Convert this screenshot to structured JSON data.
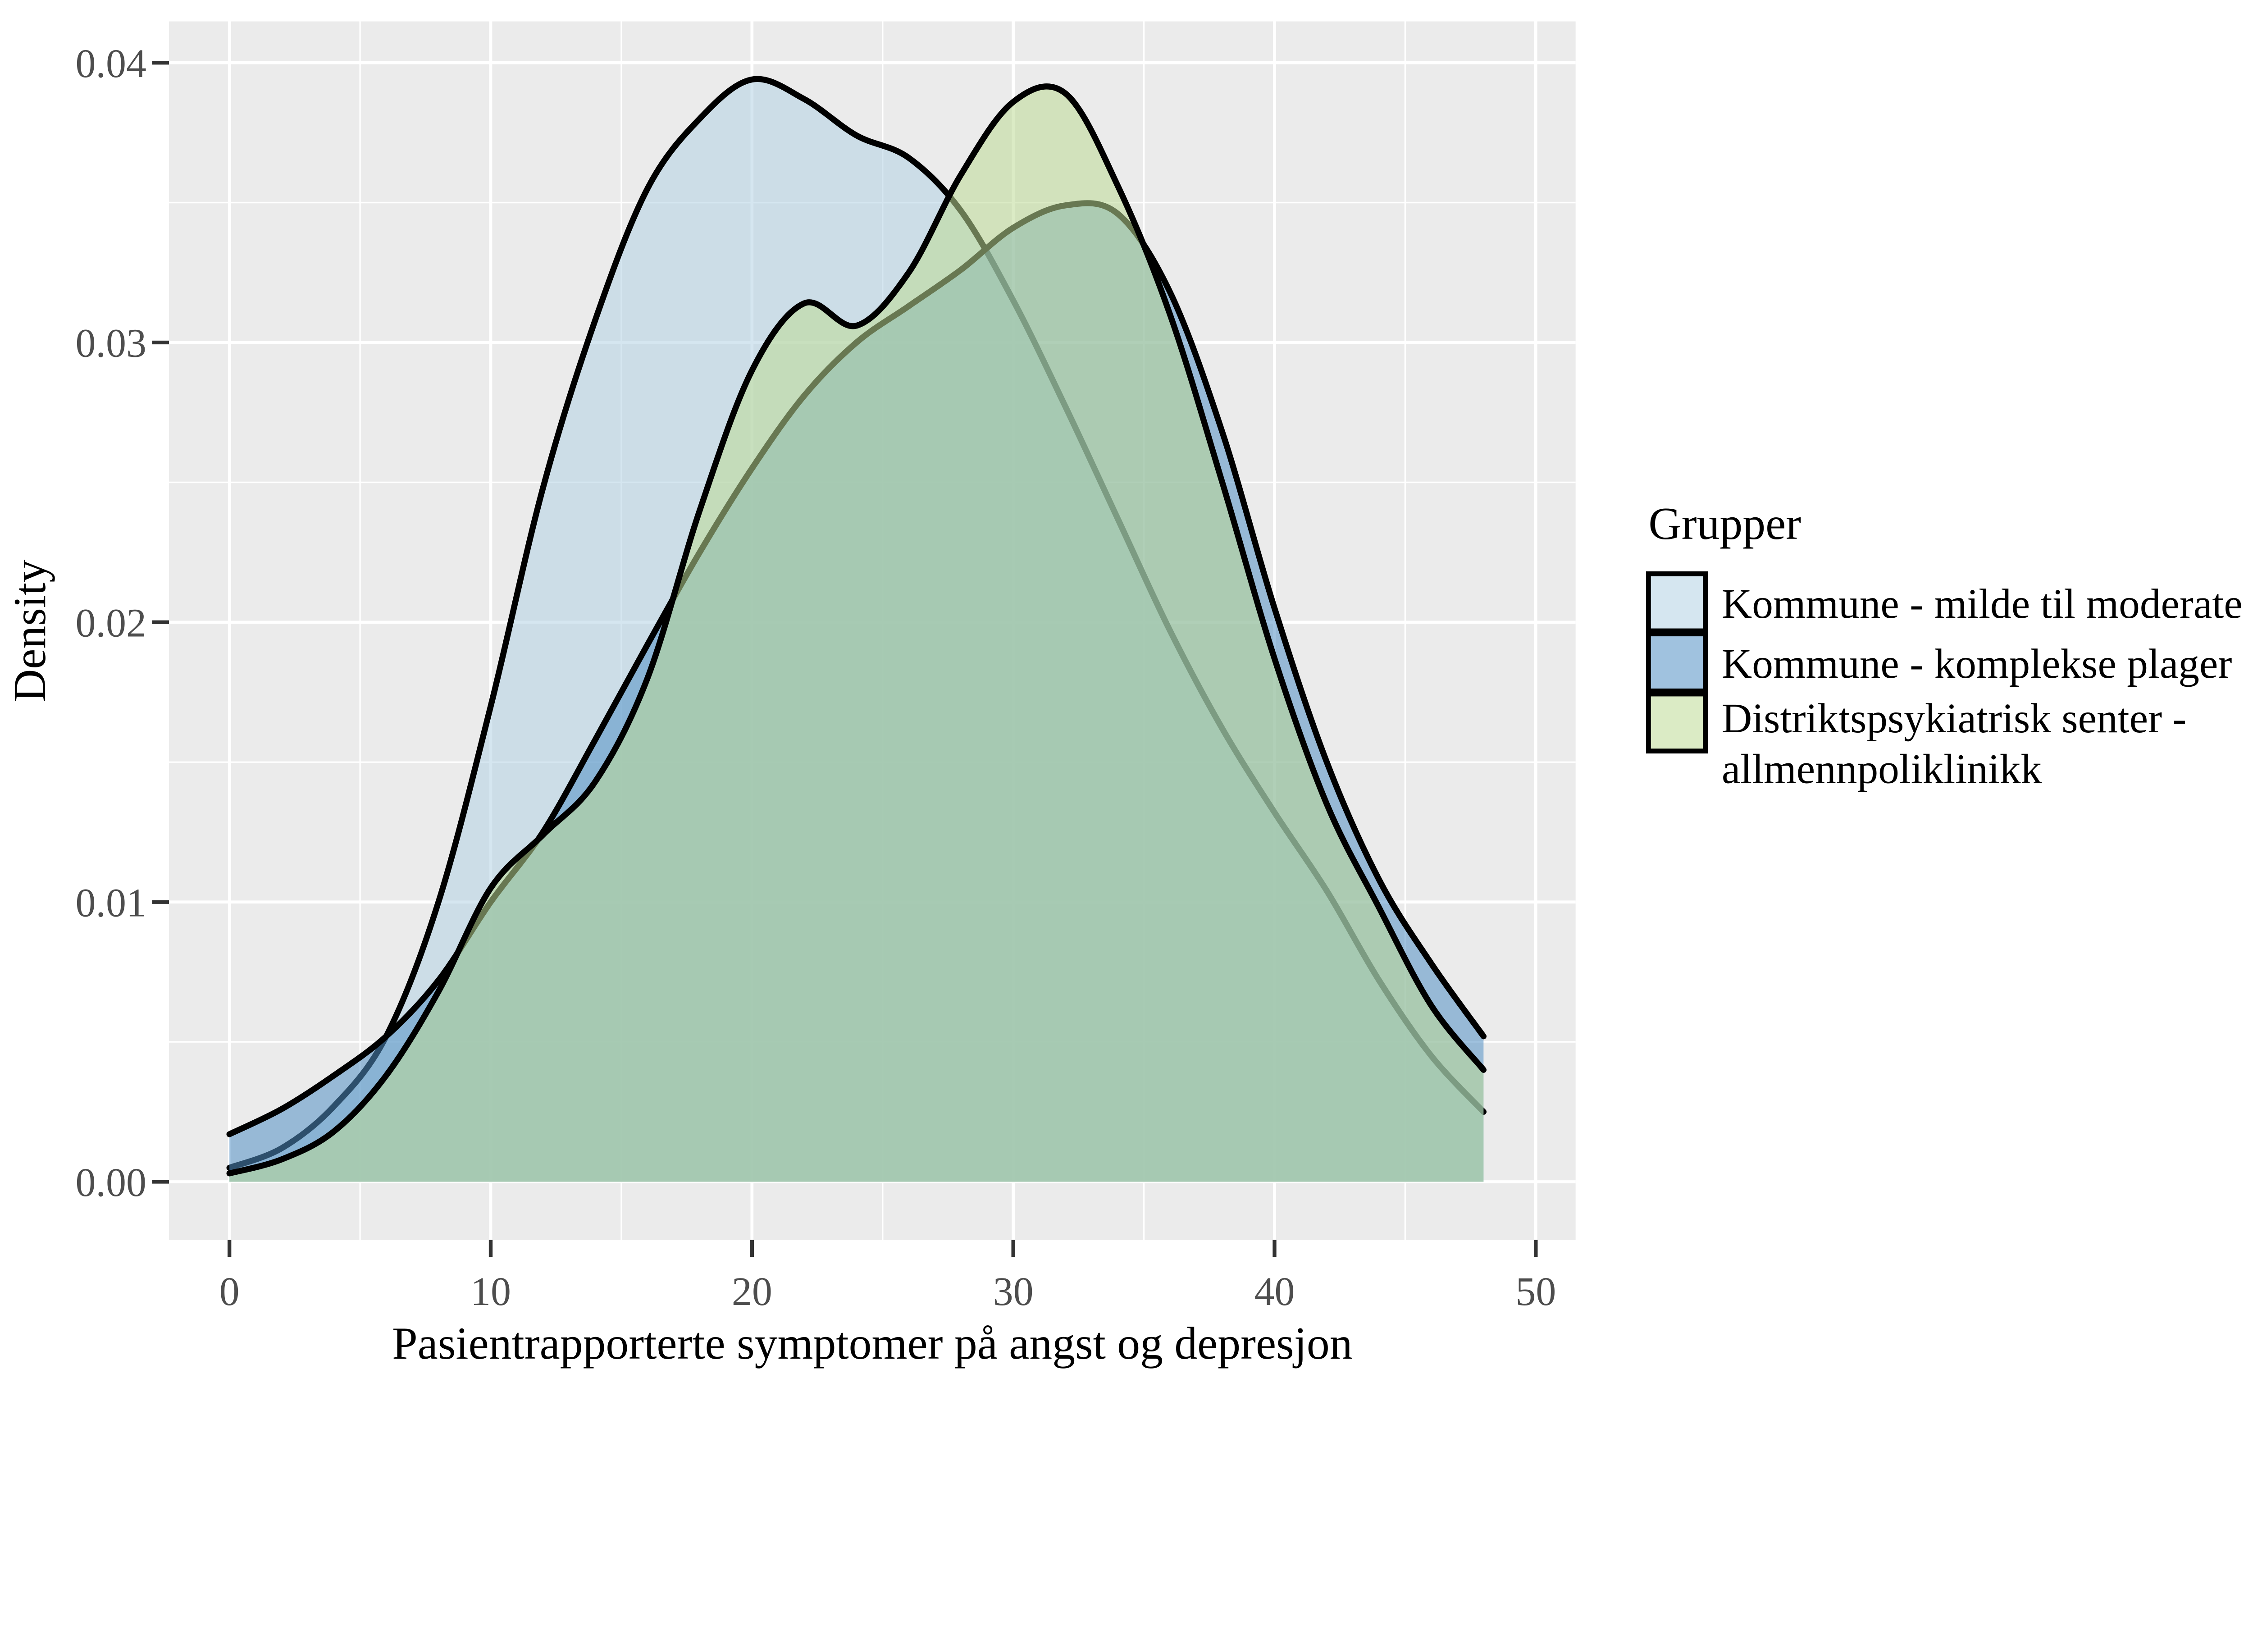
{
  "chart_data": {
    "type": "area",
    "subtype": "overlapping-density-curves",
    "xlabel": "Pasientrapporterte symptomer på angst og depresjon",
    "ylabel": "Density",
    "x_ticks": [
      0,
      10,
      20,
      30,
      40,
      50
    ],
    "x_minor_ticks": [
      5,
      15,
      25,
      35,
      45
    ],
    "y_ticks": [
      0.0,
      0.01,
      0.02,
      0.03,
      0.04
    ],
    "y_tick_labels": [
      "0.00",
      "0.01",
      "0.02",
      "0.03",
      "0.04"
    ],
    "y_minor_ticks": [
      0.005,
      0.015,
      0.025,
      0.035
    ],
    "xlim": [
      -2.3,
      51.5
    ],
    "ylim": [
      -0.002,
      0.0414
    ],
    "grid": "on",
    "legend_position": "right",
    "x": [
      0,
      2,
      4,
      6,
      8,
      10,
      12,
      14,
      16,
      18,
      20,
      22,
      24,
      26,
      28,
      30,
      32,
      34,
      36,
      38,
      40,
      42,
      44,
      46,
      48
    ],
    "series": [
      {
        "name": "Kommune - milde til moderate",
        "fill": "#b3d2e4",
        "values": [
          0.0005,
          0.0012,
          0.0027,
          0.0052,
          0.01,
          0.017,
          0.0248,
          0.0308,
          0.0355,
          0.038,
          0.0394,
          0.0387,
          0.0374,
          0.0366,
          0.0347,
          0.0315,
          0.0277,
          0.0237,
          0.0197,
          0.0162,
          0.0132,
          0.0104,
          0.0072,
          0.0045,
          0.0025
        ]
      },
      {
        "name": "Kommune - komplekse plager",
        "fill": "#5290c5",
        "values": [
          0.0017,
          0.0026,
          0.0038,
          0.0052,
          0.0072,
          0.01,
          0.0125,
          0.0158,
          0.0192,
          0.0225,
          0.0255,
          0.0281,
          0.03,
          0.0313,
          0.0326,
          0.0341,
          0.0349,
          0.0346,
          0.0318,
          0.0268,
          0.0205,
          0.015,
          0.0108,
          0.0078,
          0.0052
        ]
      },
      {
        "name": "Distriktspsykiatrisk senter - allmennpoliklinikk",
        "fill": "#bedb95",
        "values": [
          0.0003,
          0.0008,
          0.0018,
          0.0038,
          0.0068,
          0.0105,
          0.0124,
          0.0143,
          0.018,
          0.024,
          0.029,
          0.0314,
          0.0306,
          0.0325,
          0.036,
          0.0386,
          0.0389,
          0.0356,
          0.031,
          0.025,
          0.0187,
          0.0135,
          0.0098,
          0.0063,
          0.004
        ]
      }
    ],
    "fill_opacity": 0.55,
    "stroke_color": "#000000",
    "stroke_width": 16
  },
  "axes": {
    "x_title": "Pasientrapporterte symptomer på angst og depresjon",
    "y_title": "Density",
    "tick_color": "#333333",
    "tick_label_color": "#4d4d4d"
  },
  "panel": {
    "background": "#ebebeb",
    "grid_color": "#ffffff"
  },
  "legend": {
    "title": "Grupper",
    "entries": [
      {
        "label": "Kommune - milde til moderate",
        "label_line2": "",
        "fill": "#b3d2e4"
      },
      {
        "label": "Kommune - komplekse plager",
        "label_line2": "",
        "fill": "#5290c5"
      },
      {
        "label": "Distriktspsykiatrisk senter -",
        "label_line2": "allmennpoliklinikk",
        "fill": "#bedb95"
      }
    ]
  }
}
